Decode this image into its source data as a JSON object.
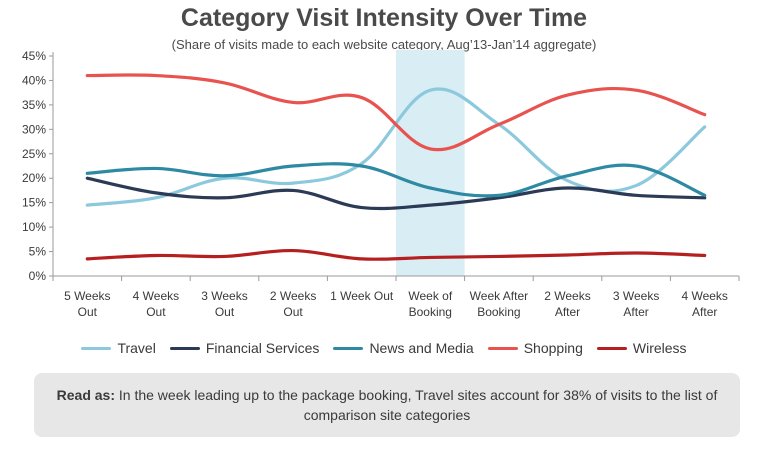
{
  "chart_data": {
    "type": "line",
    "title": "Category Visit Intensity Over Time",
    "subtitle": "(Share of visits made to each website category, Aug’13-Jan’14 aggregate)",
    "xlabel": "",
    "ylabel": "",
    "ylim": [
      0,
      45
    ],
    "y_ticks": [
      "0%",
      "5%",
      "10%",
      "15%",
      "20%",
      "25%",
      "30%",
      "35%",
      "40%",
      "45%"
    ],
    "categories": [
      [
        "5 Weeks",
        "Out"
      ],
      [
        "4 Weeks",
        "Out"
      ],
      [
        "3 Weeks",
        "Out"
      ],
      [
        "2 Weeks",
        "Out"
      ],
      [
        "1 Week Out",
        ""
      ],
      [
        "Week of",
        "Booking"
      ],
      [
        "Week After",
        "Booking"
      ],
      [
        "2 Weeks",
        "After"
      ],
      [
        "3 Weeks",
        "After"
      ],
      [
        "4 Weeks",
        "After"
      ]
    ],
    "highlight_category_index": 5,
    "highlight_color": "#d9edf5",
    "grid": false,
    "legend_position": "bottom",
    "series": [
      {
        "name": "Travel",
        "color": "#8cc9dc",
        "values": [
          14.5,
          16.0,
          20.0,
          19.0,
          23.0,
          38.0,
          31.0,
          19.5,
          18.5,
          30.5
        ]
      },
      {
        "name": "Financial Services",
        "color": "#2b3a55",
        "values": [
          20.0,
          17.0,
          16.0,
          17.5,
          14.0,
          14.5,
          16.0,
          18.0,
          16.5,
          16.0
        ]
      },
      {
        "name": "News and Media",
        "color": "#2e8aa3",
        "values": [
          21.0,
          22.0,
          20.5,
          22.5,
          22.5,
          18.0,
          16.5,
          20.5,
          22.5,
          16.5
        ]
      },
      {
        "name": "Shopping",
        "color": "#e8534f",
        "values": [
          41.0,
          41.0,
          39.5,
          35.5,
          36.5,
          26.0,
          31.0,
          37.0,
          38.0,
          33.0
        ]
      },
      {
        "name": "Wireless",
        "color": "#b51f1f",
        "values": [
          3.5,
          4.2,
          4.0,
          5.2,
          3.5,
          3.8,
          4.0,
          4.3,
          4.7,
          4.2
        ]
      }
    ]
  },
  "note": {
    "lead": "Read as:",
    "text": " In the week leading up to the package booking, Travel sites account for 38% of visits to the list of comparison site categories"
  }
}
